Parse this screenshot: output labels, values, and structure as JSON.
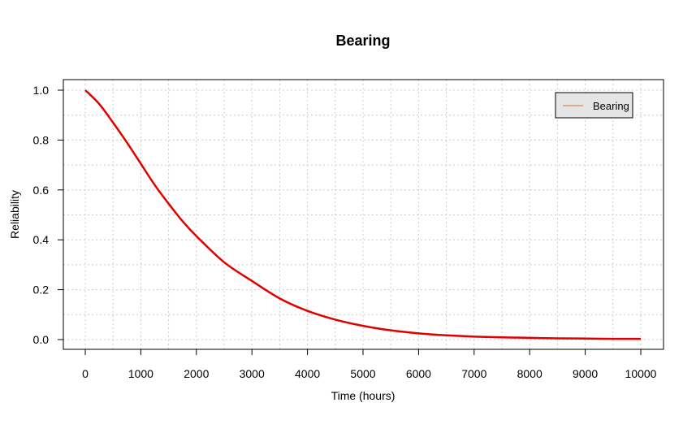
{
  "chart_data": {
    "type": "line",
    "title": "Bearing",
    "xlabel": "Time (hours)",
    "ylabel": "Reliability",
    "xlim": [
      0,
      10000
    ],
    "ylim": [
      0,
      1
    ],
    "x_ticks": [
      "0",
      "1000",
      "2000",
      "3000",
      "4000",
      "5000",
      "6000",
      "7000",
      "8000",
      "9000",
      "10000"
    ],
    "y_ticks": [
      "0.0",
      "0.2",
      "0.4",
      "0.6",
      "0.8",
      "1.0"
    ],
    "grid": true,
    "legend_position": "top-right",
    "series": [
      {
        "name": "Bearing",
        "color": "#e00000",
        "legend_color": "#e07020",
        "x": [
          0,
          250,
          500,
          750,
          1000,
          1250,
          1500,
          1750,
          2000,
          2500,
          3000,
          3500,
          4000,
          4500,
          5000,
          5500,
          6000,
          6500,
          7000,
          7500,
          8000,
          8500,
          9000,
          9500,
          10000
        ],
        "y": [
          1.0,
          0.945,
          0.87,
          0.79,
          0.705,
          0.62,
          0.545,
          0.475,
          0.415,
          0.31,
          0.235,
          0.165,
          0.115,
          0.08,
          0.055,
          0.037,
          0.025,
          0.017,
          0.012,
          0.009,
          0.007,
          0.005,
          0.004,
          0.003,
          0.003
        ]
      }
    ]
  }
}
